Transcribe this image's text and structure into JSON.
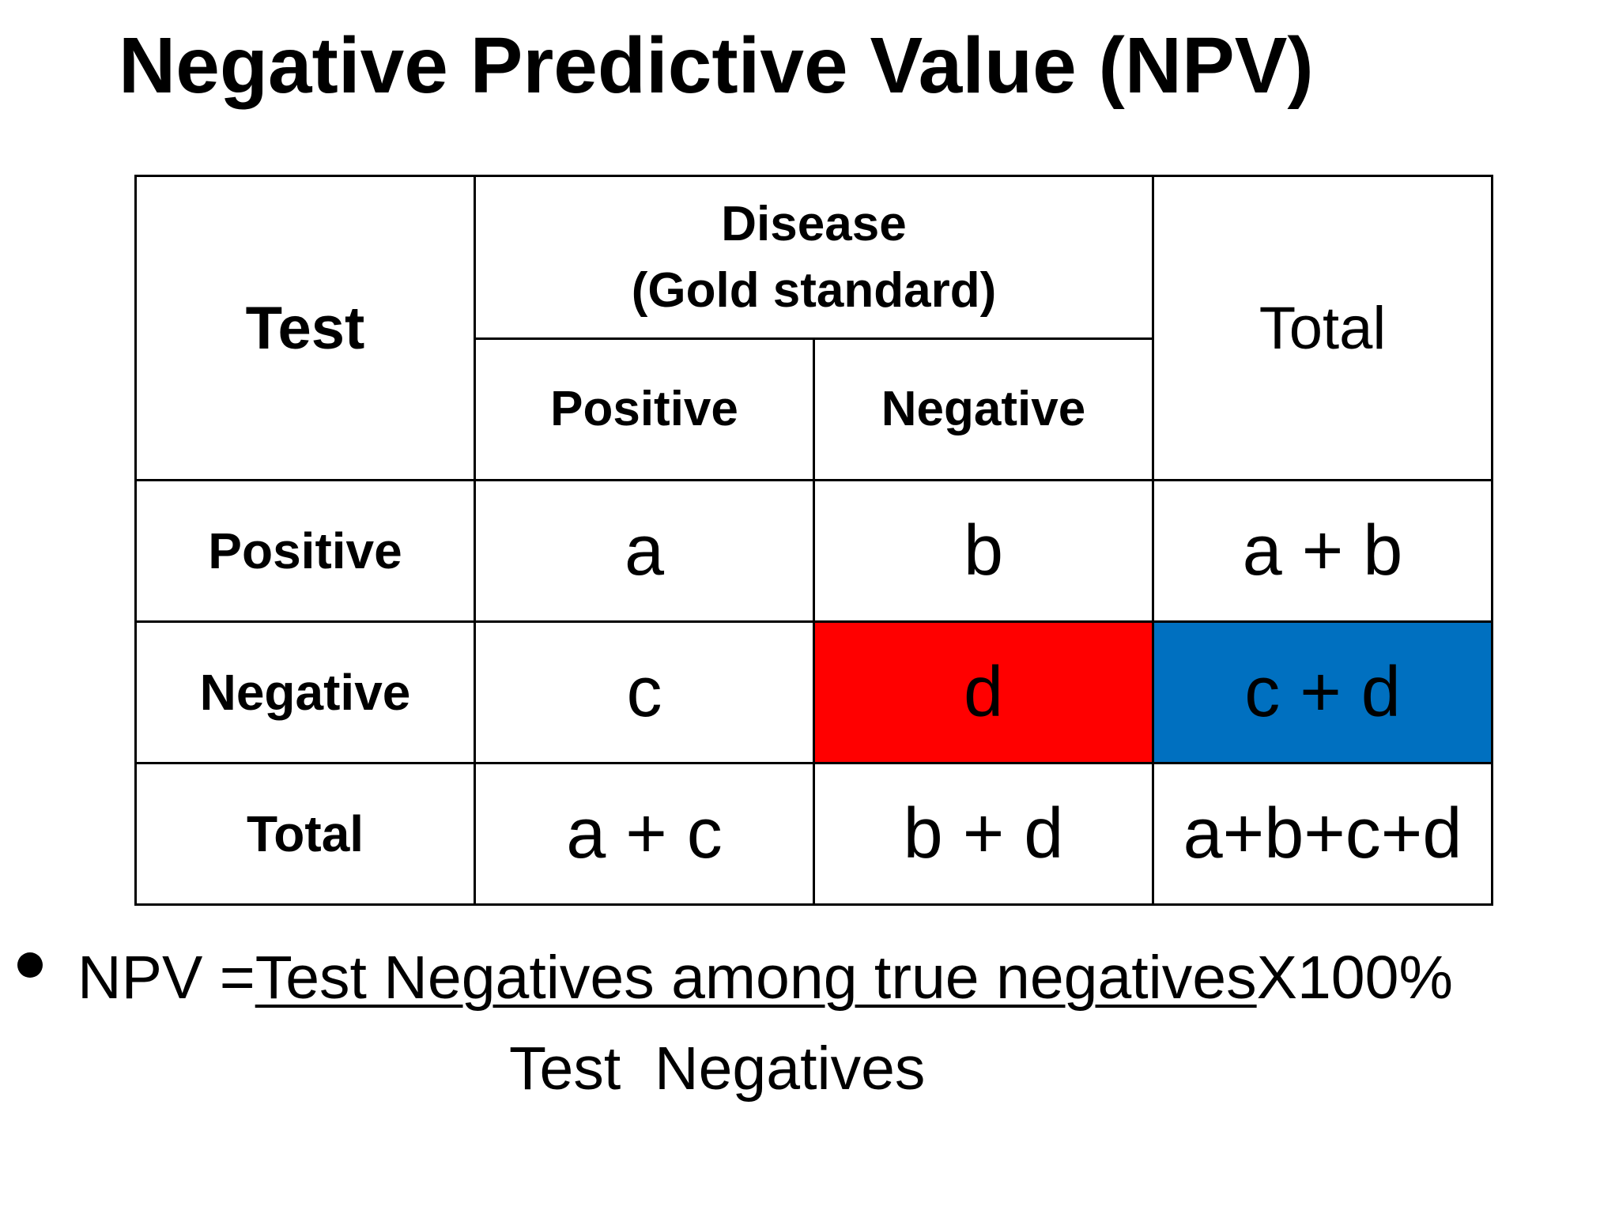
{
  "title": "Negative Predictive Value (NPV)",
  "table": {
    "corner_label": "Test",
    "disease_header_line1": "Disease",
    "disease_header_line2": "(Gold standard)",
    "total_header": "Total",
    "col_positive": "Positive",
    "col_negative": "Negative",
    "rows": [
      {
        "label": "Positive",
        "cells": [
          "a",
          "b",
          "a + b"
        ]
      },
      {
        "label": "Negative",
        "cells": [
          "c",
          "d",
          "c + d"
        ]
      },
      {
        "label": "Total",
        "cells": [
          "a + c",
          "b + d",
          "a+b+c+d"
        ]
      }
    ]
  },
  "highlight_colors": {
    "cell_d": "#ff0000",
    "cell_c_plus_d": "#0070c0"
  },
  "formula": {
    "lhs": "NPV =",
    "numerator": "Test Negatives among true negatives",
    "multiplier": "X100%",
    "denominator": "Test  Negatives"
  }
}
